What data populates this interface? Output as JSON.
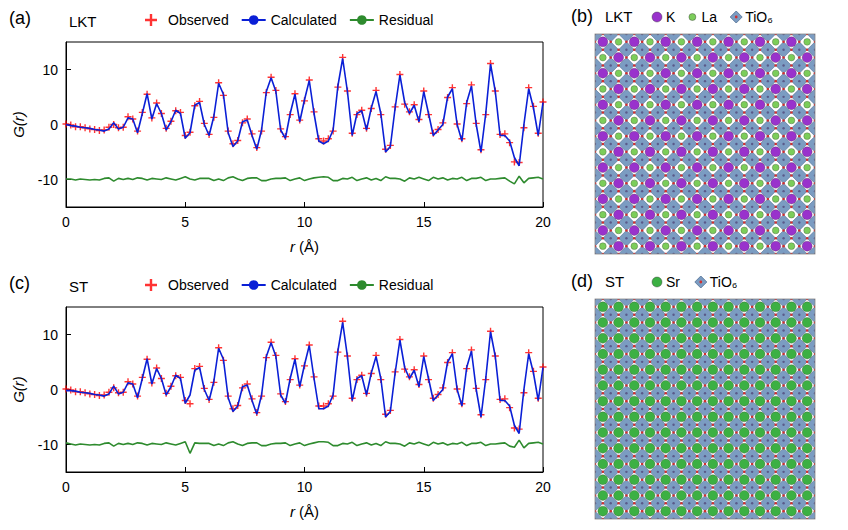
{
  "chart_data": [
    {
      "type": "line",
      "label": "(a)",
      "title": "LKT",
      "x_label": "r (Å)",
      "y_label": "G(r)",
      "xlim": [
        0,
        20
      ],
      "xticks": [
        0,
        5,
        10,
        15,
        20
      ],
      "ylim": [
        -15,
        15
      ],
      "yticks": [
        -10,
        0,
        10
      ],
      "grid": false,
      "legend": "top",
      "x": [
        0,
        0.2,
        0.4,
        0.6,
        0.8,
        1,
        1.2,
        1.4,
        1.6,
        1.8,
        2,
        2.2,
        2.4,
        2.6,
        2.8,
        3,
        3.2,
        3.4,
        3.6,
        3.8,
        4,
        4.2,
        4.4,
        4.6,
        4.8,
        5,
        5.2,
        5.4,
        5.6,
        5.8,
        6,
        6.2,
        6.4,
        6.6,
        6.8,
        7,
        7.2,
        7.4,
        7.6,
        7.8,
        8,
        8.2,
        8.4,
        8.6,
        8.8,
        9,
        9.2,
        9.4,
        9.6,
        9.8,
        10,
        10.2,
        10.4,
        10.6,
        10.8,
        11,
        11.2,
        11.4,
        11.6,
        11.8,
        12,
        12.2,
        12.4,
        12.6,
        12.8,
        13,
        13.2,
        13.4,
        13.6,
        13.8,
        14,
        14.2,
        14.4,
        14.6,
        14.8,
        15,
        15.2,
        15.4,
        15.6,
        15.8,
        16,
        16.2,
        16.4,
        16.6,
        16.8,
        17,
        17.2,
        17.4,
        17.6,
        17.8,
        18,
        18.2,
        18.4,
        18.6,
        18.8,
        19,
        19.2,
        19.4,
        19.6,
        19.8,
        20
      ],
      "series": [
        {
          "name": "Observed",
          "type": "scatter",
          "marker": "plus",
          "color": "#ff0000",
          "values": [
            0.1,
            -0.1,
            -0.4,
            -0.4,
            -0.6,
            -0.8,
            -0.9,
            -1.1,
            -1.0,
            -0.5,
            0.0,
            -0.6,
            -0.5,
            1.4,
            1.0,
            -1.2,
            2.2,
            5.5,
            1.2,
            3.9,
            2.0,
            -0.7,
            0.6,
            2.5,
            2.2,
            -2.0,
            -1.4,
            3.4,
            4.2,
            0.2,
            -1.8,
            1.3,
            7.6,
            5.3,
            -1.2,
            -3.5,
            -2.9,
            0.3,
            1.0,
            -1.7,
            -4.2,
            -1.2,
            5.8,
            8.6,
            6.2,
            -0.8,
            -2.2,
            1.8,
            5.6,
            0.8,
            4.3,
            8.1,
            2.3,
            -2.6,
            -3.0,
            -2.6,
            -1.2,
            6.8,
            12.2,
            6.1,
            -1.6,
            1.8,
            2.6,
            -0.7,
            2.9,
            6.2,
            1.8,
            -4.5,
            -3.8,
            3.2,
            9.1,
            3.7,
            2.3,
            3.6,
            0.9,
            6.1,
            1.8,
            -1.6,
            -0.9,
            0.3,
            4.9,
            6.7,
            0.1,
            -2.6,
            3.8,
            7.2,
            0.2,
            -4.6,
            1.8,
            11.1,
            6.1,
            -1.8,
            -1.7,
            -3.3,
            -6.8,
            -6.9,
            -0.6,
            6.7,
            3.3,
            -1.6,
            4.1
          ]
        },
        {
          "name": "Calculated",
          "type": "line",
          "line_style": "solid",
          "color": "#0a1fd6",
          "values": [
            0,
            -0.2,
            -0.3,
            -0.5,
            -0.6,
            -0.7,
            -0.9,
            -1.0,
            -1.2,
            -0.8,
            0.3,
            -0.8,
            -0.5,
            1.2,
            1.0,
            -1.5,
            2.0,
            5.6,
            1.0,
            3.8,
            2.0,
            -1.0,
            0.5,
            2.6,
            2.0,
            -2.5,
            -1.5,
            3.5,
            4.0,
            0.0,
            -2.0,
            1.5,
            7.5,
            5.5,
            -1.5,
            -4.0,
            -3.0,
            0.5,
            0.8,
            -2.0,
            -4.5,
            -1.0,
            6.0,
            8.5,
            6.0,
            -1.0,
            -2.5,
            2.0,
            5.5,
            0.5,
            4.5,
            8.0,
            2.0,
            -3.0,
            -3.5,
            -3.0,
            -1.0,
            7.0,
            12.0,
            6.0,
            -2.0,
            2.0,
            2.5,
            -1.0,
            3.0,
            6.0,
            2.0,
            -5.0,
            -4.0,
            3.0,
            9.0,
            4.0,
            2.0,
            3.5,
            0.5,
            6.0,
            2.0,
            -2.0,
            -1.0,
            0.0,
            5.0,
            6.5,
            0.0,
            -3.0,
            4.0,
            7.0,
            0.0,
            -5.0,
            2.0,
            11.0,
            6.0,
            -2.0,
            -2.0,
            -3.0,
            -6.0,
            -7.5,
            0.0,
            6.5,
            3.0,
            -2.0,
            4.0
          ]
        },
        {
          "name": "Residual",
          "type": "line",
          "line_style": "solid",
          "color": "#2e8b2e",
          "values": [
            -9.9,
            -9.9,
            -10.1,
            -9.9,
            -10,
            -10.1,
            -10,
            -10.1,
            -9.8,
            -9.7,
            -10.3,
            -9.8,
            -10,
            -9.8,
            -10,
            -9.7,
            -9.8,
            -10.1,
            -9.8,
            -9.9,
            -10,
            -9.7,
            -9.9,
            -10.1,
            -9.8,
            -9.5,
            -9.9,
            -10.1,
            -9.8,
            -9.8,
            -9.8,
            -10.2,
            -9.9,
            -10.2,
            -9.7,
            -9.5,
            -9.9,
            -10.2,
            -9.8,
            -9.7,
            -9.7,
            -10.2,
            -10.2,
            -9.9,
            -9.8,
            -9.8,
            -9.7,
            -10.2,
            -9.9,
            -9.7,
            -10.2,
            -9.9,
            -9.7,
            -9.6,
            -9.5,
            -9.6,
            -10.2,
            -10.2,
            -9.8,
            -9.9,
            -9.6,
            -10.2,
            -9.9,
            -9.7,
            -10.1,
            -9.8,
            -10.2,
            -9.5,
            -9.8,
            -9.8,
            -9.9,
            -10.3,
            -9.7,
            -9.9,
            -9.6,
            -9.9,
            -10.2,
            -9.6,
            -9.9,
            -9.7,
            -10.1,
            -9.8,
            -9.9,
            -9.6,
            -10.2,
            -9.8,
            -9.8,
            -9.6,
            -10.2,
            -9.9,
            -9.9,
            -9.8,
            -9.7,
            -10.3,
            -10.8,
            -9.4,
            -10.6,
            -9.8,
            -9.7,
            -9.6,
            -9.9
          ]
        }
      ]
    },
    {
      "type": "line",
      "label": "(c)",
      "title": "ST",
      "x_label": "r (Å)",
      "y_label": "G(r)",
      "xlim": [
        0,
        20
      ],
      "xticks": [
        0,
        5,
        10,
        15,
        20
      ],
      "ylim": [
        -15,
        15
      ],
      "yticks": [
        -10,
        0,
        10
      ],
      "grid": false,
      "legend": "top",
      "x": [
        0,
        0.2,
        0.4,
        0.6,
        0.8,
        1,
        1.2,
        1.4,
        1.6,
        1.8,
        2,
        2.2,
        2.4,
        2.6,
        2.8,
        3,
        3.2,
        3.4,
        3.6,
        3.8,
        4,
        4.2,
        4.4,
        4.6,
        4.8,
        5,
        5.2,
        5.4,
        5.6,
        5.8,
        6,
        6.2,
        6.4,
        6.6,
        6.8,
        7,
        7.2,
        7.4,
        7.6,
        7.8,
        8,
        8.2,
        8.4,
        8.6,
        8.8,
        9,
        9.2,
        9.4,
        9.6,
        9.8,
        10,
        10.2,
        10.4,
        10.6,
        10.8,
        11,
        11.2,
        11.4,
        11.6,
        11.8,
        12,
        12.2,
        12.4,
        12.6,
        12.8,
        13,
        13.2,
        13.4,
        13.6,
        13.8,
        14,
        14.2,
        14.4,
        14.6,
        14.8,
        15,
        15.2,
        15.4,
        15.6,
        15.8,
        16,
        16.2,
        16.4,
        16.6,
        16.8,
        17,
        17.2,
        17.4,
        17.6,
        17.8,
        18,
        18.2,
        18.4,
        18.6,
        18.8,
        19,
        19.2,
        19.4,
        19.6,
        19.8,
        20
      ],
      "series": [
        {
          "name": "Observed",
          "type": "scatter",
          "marker": "plus",
          "color": "#ff0000",
          "values": [
            0.1,
            -0.1,
            -0.4,
            -0.4,
            -0.6,
            -0.8,
            -0.9,
            -1.1,
            -1.0,
            -0.5,
            0.3,
            -0.6,
            -0.5,
            1.4,
            1.0,
            -1.2,
            2.2,
            5.5,
            1.2,
            3.9,
            2.0,
            -0.7,
            0.6,
            2.5,
            2.2,
            -2.0,
            -2.6,
            3.8,
            4.2,
            0.2,
            -1.8,
            1.3,
            7.6,
            5.3,
            -1.2,
            -3.5,
            -2.9,
            0.3,
            1.0,
            -1.7,
            -4.2,
            -1.2,
            5.8,
            8.6,
            6.2,
            -0.8,
            -2.2,
            1.8,
            5.6,
            0.8,
            4.3,
            8.1,
            2.3,
            -3.0,
            -3.0,
            -2.6,
            -1.2,
            6.8,
            12.4,
            6.1,
            -1.6,
            1.8,
            2.6,
            -0.7,
            2.9,
            6.2,
            1.8,
            -4.5,
            -3.8,
            3.2,
            9.1,
            3.7,
            2.3,
            3.6,
            0.9,
            6.1,
            1.8,
            -1.6,
            -0.9,
            0.3,
            4.9,
            6.7,
            0.1,
            -2.6,
            3.8,
            7.2,
            0.2,
            -4.6,
            1.8,
            10.6,
            6.1,
            -1.8,
            -1.7,
            -3.3,
            -7.0,
            -7.2,
            -0.6,
            6.7,
            3.3,
            -1.6,
            4.1
          ]
        },
        {
          "name": "Calculated",
          "type": "line",
          "line_style": "solid",
          "color": "#0a1fd6",
          "values": [
            -0.2,
            -0.2,
            -0.3,
            -0.5,
            -0.6,
            -0.7,
            -0.9,
            -1.0,
            -1.2,
            -0.8,
            0.6,
            -0.8,
            -0.5,
            1.2,
            1.0,
            -1.5,
            2.0,
            5.6,
            1.0,
            3.8,
            2.0,
            -1.0,
            0.5,
            2.6,
            2.0,
            -2.5,
            -1.0,
            3.5,
            4.0,
            0.0,
            -2.0,
            1.5,
            7.5,
            5.5,
            -1.5,
            -4.0,
            -3.0,
            0.5,
            0.8,
            -2.0,
            -4.5,
            -1.0,
            6.0,
            8.5,
            6.0,
            -1.0,
            -2.5,
            2.0,
            5.5,
            0.5,
            4.5,
            8.0,
            2.0,
            -3.5,
            -3.5,
            -3.0,
            -1.0,
            7.0,
            12.2,
            6.0,
            -2.0,
            2.0,
            2.5,
            -1.0,
            3.0,
            6.0,
            2.0,
            -5.0,
            -4.0,
            3.0,
            9.0,
            4.0,
            2.0,
            3.5,
            0.5,
            6.0,
            2.0,
            -2.0,
            -1.0,
            0.0,
            5.0,
            6.5,
            0.0,
            -3.0,
            4.0,
            7.0,
            0.0,
            -5.0,
            2.0,
            10.5,
            6.0,
            -2.0,
            -2.0,
            -3.0,
            -6.5,
            -8.0,
            0.0,
            6.5,
            3.0,
            -2.0,
            4.0
          ]
        },
        {
          "name": "Residual",
          "type": "line",
          "line_style": "solid",
          "color": "#2e8b2e",
          "values": [
            -9.7,
            -9.9,
            -10.1,
            -9.9,
            -10,
            -10.1,
            -10,
            -10.1,
            -9.8,
            -9.7,
            -10.3,
            -9.8,
            -10,
            -9.8,
            -10,
            -9.7,
            -9.8,
            -10.1,
            -9.8,
            -9.9,
            -10,
            -9.7,
            -9.9,
            -10.1,
            -9.8,
            -9.5,
            -11.6,
            -9.7,
            -9.8,
            -9.8,
            -9.8,
            -10.2,
            -9.9,
            -10.2,
            -9.7,
            -9.5,
            -9.9,
            -10.2,
            -9.8,
            -9.7,
            -9.7,
            -10.2,
            -10.2,
            -9.9,
            -9.8,
            -9.8,
            -9.7,
            -10.2,
            -9.9,
            -9.7,
            -10.2,
            -9.9,
            -9.7,
            -9.5,
            -9.5,
            -9.6,
            -10.2,
            -10.2,
            -9.8,
            -9.9,
            -9.6,
            -10.2,
            -9.9,
            -9.7,
            -10.1,
            -9.8,
            -10.2,
            -9.5,
            -9.8,
            -9.8,
            -9.9,
            -10.3,
            -9.7,
            -9.9,
            -9.6,
            -9.9,
            -10.2,
            -9.6,
            -9.9,
            -9.7,
            -10.1,
            -9.8,
            -9.9,
            -9.6,
            -10.2,
            -9.8,
            -9.8,
            -9.6,
            -10.2,
            -9.9,
            -9.9,
            -9.8,
            -9.7,
            -10.3,
            -10.5,
            -9.2,
            -10.6,
            -9.8,
            -9.7,
            -9.6,
            -9.9
          ]
        }
      ]
    }
  ],
  "structures": [
    {
      "label": "(b)",
      "title": "LKT",
      "species": [
        {
          "name": "K",
          "marker": "circle",
          "color": "#9932cc"
        },
        {
          "name": "La",
          "marker": "circle",
          "color": "#7ccd5a"
        },
        {
          "name": "TiO₆",
          "marker": "diamond",
          "color": "#7b9cc2"
        }
      ]
    },
    {
      "label": "(d)",
      "title": "ST",
      "species": [
        {
          "name": "Sr",
          "marker": "circle",
          "color": "#3cb043"
        },
        {
          "name": "TiO₆",
          "marker": "diamond",
          "color": "#7b9cc2"
        }
      ]
    }
  ]
}
